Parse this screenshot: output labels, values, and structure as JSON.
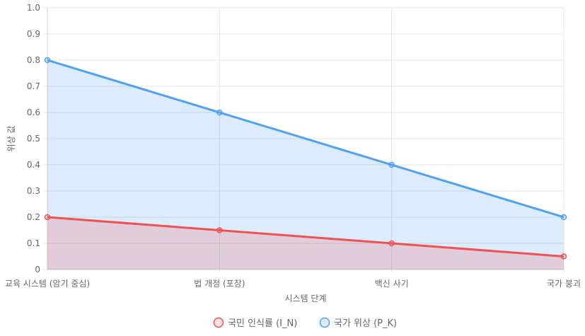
{
  "chart_data": {
    "type": "area",
    "categories": [
      "교육 시스템 (암기 중심)",
      "법 개정 (포장)",
      "백신 사기",
      "국가 붕괴"
    ],
    "series": [
      {
        "name": "국민 인식률 (I_N)",
        "values": [
          0.2,
          0.15,
          0.1,
          0.05
        ],
        "color": "#f05252",
        "fill": "rgba(240,82,82,0.2)"
      },
      {
        "name": "국가 위상 (P_K)",
        "values": [
          0.8,
          0.6,
          0.4,
          0.2
        ],
        "color": "#4ea1f3",
        "fill": "rgba(78,161,243,0.2)"
      }
    ],
    "xlabel": "시스템 단계",
    "ylabel": "위상 값",
    "ylim": [
      0,
      1.0
    ],
    "yticks": [
      "0",
      "0.1",
      "0.2",
      "0.3",
      "0.4",
      "0.5",
      "0.6",
      "0.7",
      "0.8",
      "0.9",
      "1.0"
    ],
    "grid": true,
    "legend_position": "bottom"
  }
}
